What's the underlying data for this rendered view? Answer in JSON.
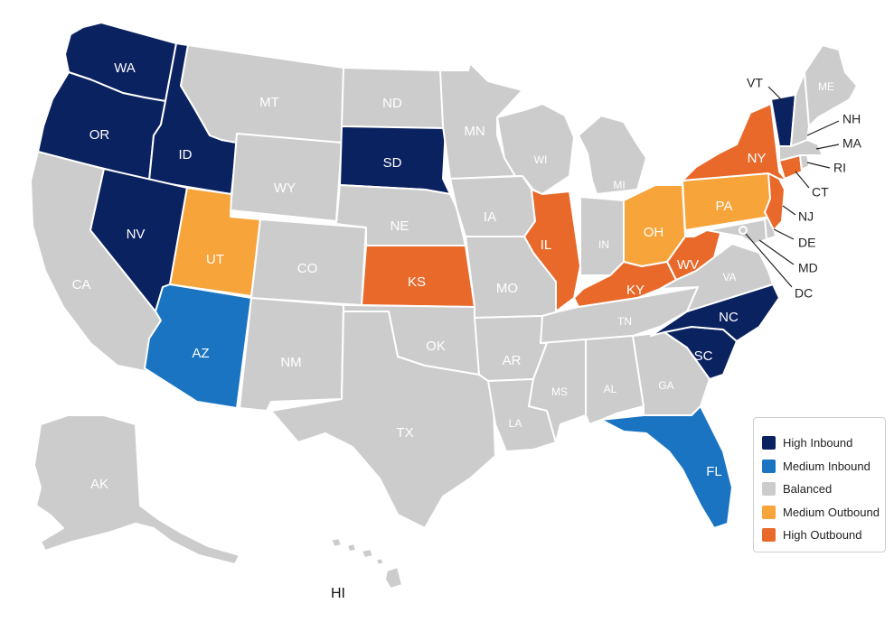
{
  "map": {
    "colors": {
      "high_inbound": "#0b2260",
      "medium_inbound": "#1a74c2",
      "balanced": "#cccccc",
      "medium_outbound": "#f7a43a",
      "high_outbound": "#e8692a"
    },
    "states": [
      {
        "code": "WA",
        "category": "high_inbound"
      },
      {
        "code": "OR",
        "category": "high_inbound"
      },
      {
        "code": "ID",
        "category": "high_inbound"
      },
      {
        "code": "NV",
        "category": "high_inbound"
      },
      {
        "code": "SD",
        "category": "high_inbound"
      },
      {
        "code": "NC",
        "category": "high_inbound"
      },
      {
        "code": "SC",
        "category": "high_inbound"
      },
      {
        "code": "VT",
        "category": "high_inbound"
      },
      {
        "code": "AZ",
        "category": "medium_inbound"
      },
      {
        "code": "FL",
        "category": "medium_inbound"
      },
      {
        "code": "UT",
        "category": "medium_outbound"
      },
      {
        "code": "OH",
        "category": "medium_outbound"
      },
      {
        "code": "PA",
        "category": "medium_outbound"
      },
      {
        "code": "KS",
        "category": "high_outbound"
      },
      {
        "code": "IL",
        "category": "high_outbound"
      },
      {
        "code": "KY",
        "category": "high_outbound"
      },
      {
        "code": "WV",
        "category": "high_outbound"
      },
      {
        "code": "NY",
        "category": "high_outbound"
      },
      {
        "code": "NJ",
        "category": "high_outbound"
      },
      {
        "code": "CT",
        "category": "high_outbound"
      },
      {
        "code": "MT",
        "category": "balanced"
      },
      {
        "code": "ND",
        "category": "balanced"
      },
      {
        "code": "MN",
        "category": "balanced"
      },
      {
        "code": "WY",
        "category": "balanced"
      },
      {
        "code": "NE",
        "category": "balanced"
      },
      {
        "code": "IA",
        "category": "balanced"
      },
      {
        "code": "WI",
        "category": "balanced"
      },
      {
        "code": "MI",
        "category": "balanced"
      },
      {
        "code": "CA",
        "category": "balanced"
      },
      {
        "code": "CO",
        "category": "balanced"
      },
      {
        "code": "MO",
        "category": "balanced"
      },
      {
        "code": "IN",
        "category": "balanced"
      },
      {
        "code": "NM",
        "category": "balanced"
      },
      {
        "code": "OK",
        "category": "balanced"
      },
      {
        "code": "AR",
        "category": "balanced"
      },
      {
        "code": "TN",
        "category": "balanced"
      },
      {
        "code": "VA",
        "category": "balanced"
      },
      {
        "code": "TX",
        "category": "balanced"
      },
      {
        "code": "LA",
        "category": "balanced"
      },
      {
        "code": "MS",
        "category": "balanced"
      },
      {
        "code": "AL",
        "category": "balanced"
      },
      {
        "code": "GA",
        "category": "balanced"
      },
      {
        "code": "ME",
        "category": "balanced"
      },
      {
        "code": "NH",
        "category": "balanced"
      },
      {
        "code": "MA",
        "category": "balanced"
      },
      {
        "code": "RI",
        "category": "balanced"
      },
      {
        "code": "DE",
        "category": "balanced"
      },
      {
        "code": "MD",
        "category": "balanced"
      },
      {
        "code": "DC",
        "category": "balanced"
      },
      {
        "code": "AK",
        "category": "balanced"
      },
      {
        "code": "HI",
        "category": "balanced"
      }
    ]
  },
  "legend": {
    "items": [
      {
        "label": "High Inbound",
        "color": "#0b2260"
      },
      {
        "label": "Medium Inbound",
        "color": "#1a74c2"
      },
      {
        "label": "Balanced",
        "color": "#cccccc"
      },
      {
        "label": "Medium Outbound",
        "color": "#f7a43a"
      },
      {
        "label": "High Outbound",
        "color": "#e8692a"
      }
    ]
  }
}
